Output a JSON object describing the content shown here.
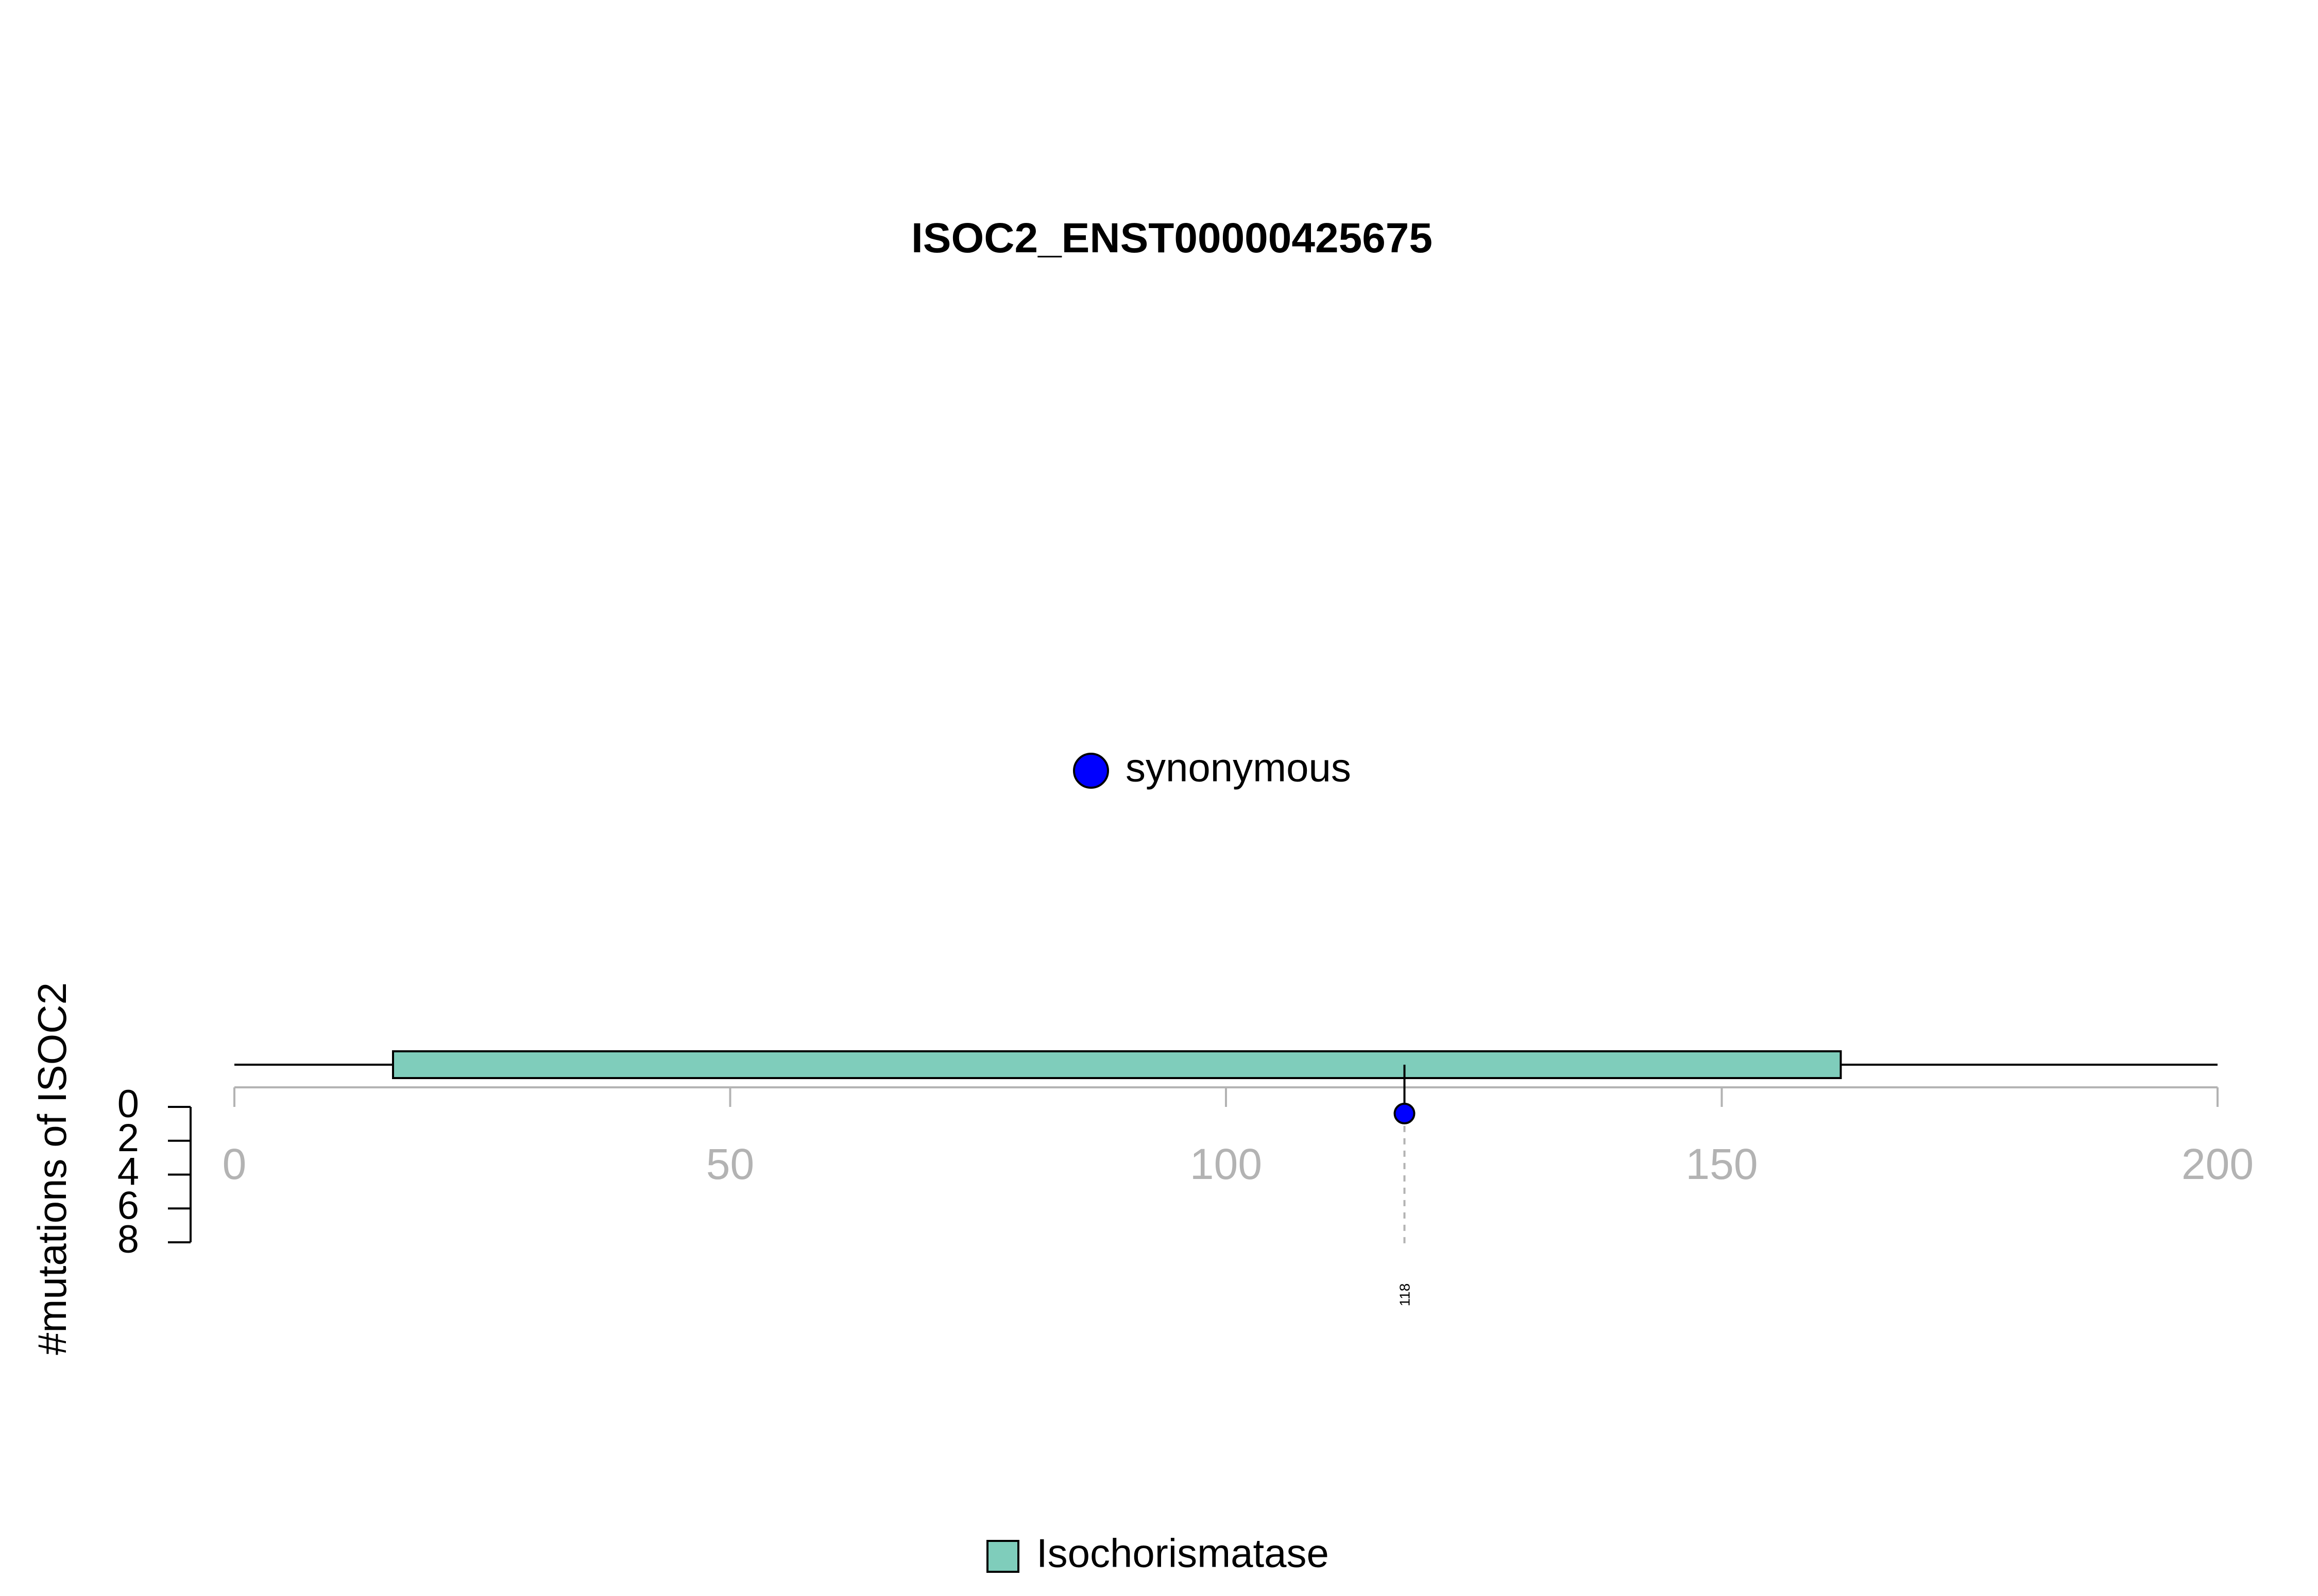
{
  "chart_data": {
    "type": "scatter",
    "title": "ISOC2_ENST00000425675",
    "ylabel": "#mutations of ISOC2",
    "x_axis": {
      "range": [
        0,
        200
      ],
      "ticks": [
        0,
        50,
        100,
        150,
        200
      ],
      "tick_labels": [
        "0",
        "50",
        "100",
        "150",
        "200"
      ]
    },
    "y_axis": {
      "range": [
        0,
        8
      ],
      "ticks": [
        0,
        2,
        4,
        6,
        8
      ],
      "tick_labels": [
        "0",
        "2",
        "4",
        "6",
        "8"
      ]
    },
    "protein_length": 200,
    "domains": [
      {
        "name": "Isochorismatase",
        "start": 16,
        "end": 162,
        "color": "#7fcdbb"
      }
    ],
    "mutations": [
      {
        "position": 118,
        "label": "118",
        "count": 1,
        "type": "synonymous",
        "color": "#0000ff"
      }
    ],
    "legend_mutation_types": [
      {
        "label": "synonymous",
        "color": "#0000ff"
      }
    ],
    "legend_domains": [
      {
        "label": "Isochorismatase",
        "color": "#7fcdbb"
      }
    ]
  }
}
